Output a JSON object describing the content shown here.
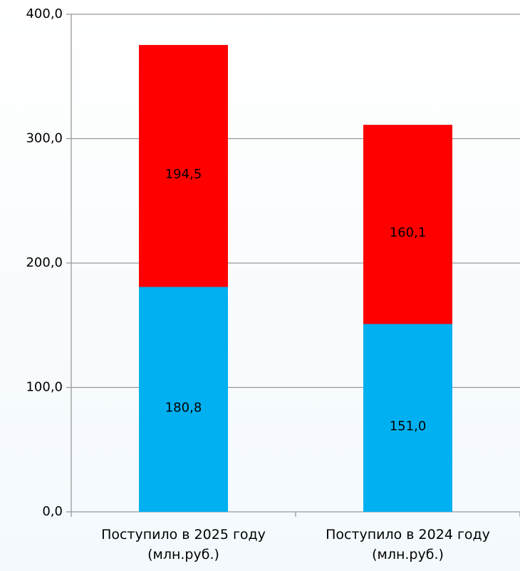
{
  "chart_data": {
    "type": "stacked_bar",
    "categories": [
      "Поступило в 2025 году (млн.руб.)",
      "Поступило в 2024 году (млн.руб.)"
    ],
    "series": [
      {
        "color": "#00b0f0",
        "values": [
          180.8,
          151.0
        ],
        "value_labels": [
          "180,8",
          "151,0"
        ]
      },
      {
        "color": "#ff0000",
        "values": [
          194.5,
          160.1
        ],
        "value_labels": [
          "194,5",
          "160,1"
        ]
      }
    ],
    "ylim": [
      0,
      400
    ],
    "yticks": [
      {
        "value": 0,
        "label": "0,0"
      },
      {
        "value": 100,
        "label": "100,0"
      },
      {
        "value": 200,
        "label": "200,0"
      },
      {
        "value": 300,
        "label": "300,0"
      },
      {
        "value": 400,
        "label": "400,0"
      }
    ],
    "grid": true
  }
}
